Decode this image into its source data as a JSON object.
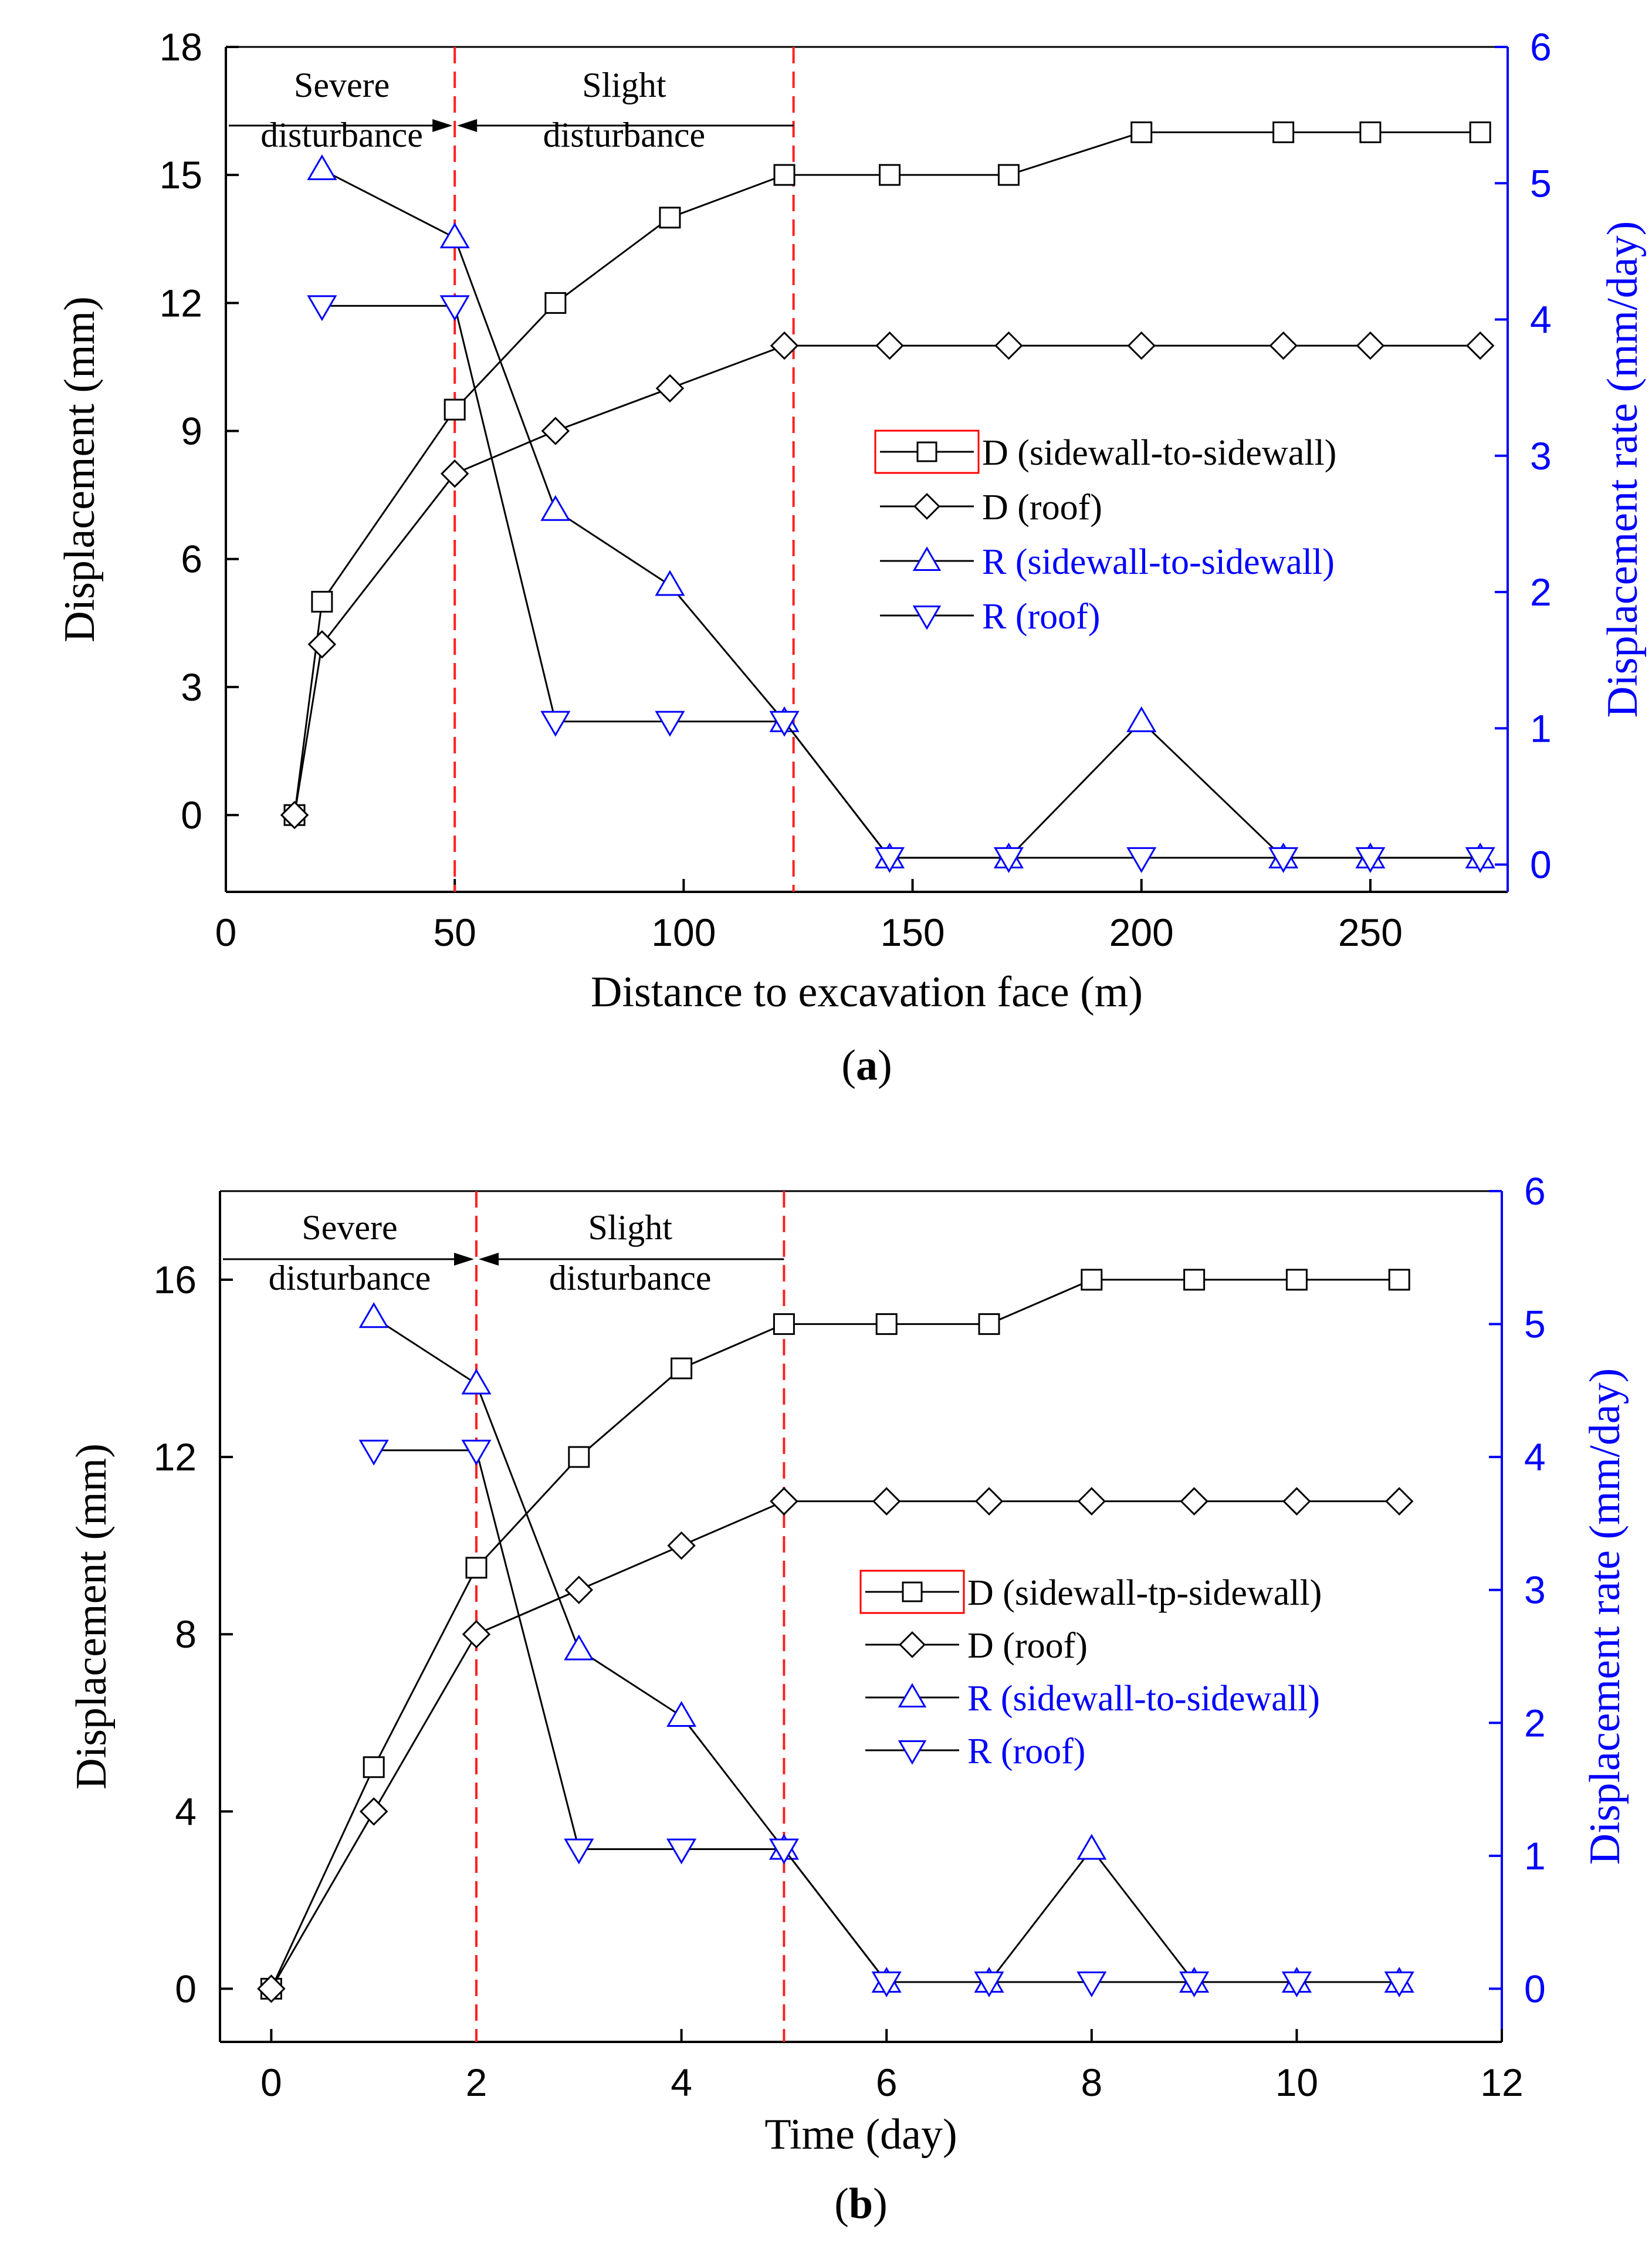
{
  "colors": {
    "axis_black": "#000000",
    "axis_blue": "#0000ff",
    "disp_series": "#000000",
    "rate_series": "#0000ff",
    "divider_red": "#ff2020",
    "legend_box_red": "#ff0000"
  },
  "chart_data": [
    {
      "panel_label": "a",
      "type": "line",
      "xlabel": "Distance to excavation face (m)",
      "ylabel": "Displacement (mm)",
      "y2label": "Displacement rate (mm/day)",
      "xlim": [
        0,
        280
      ],
      "ylim": [
        -1.8,
        18
      ],
      "y2lim": [
        -0.2,
        6
      ],
      "xticks": [
        0,
        50,
        100,
        150,
        200,
        250
      ],
      "yticks": [
        0,
        3,
        6,
        9,
        12,
        15,
        18
      ],
      "y2ticks": [
        0,
        1,
        2,
        3,
        4,
        5,
        6
      ],
      "grid": false,
      "legend_position": "center-right",
      "dividers": [
        50,
        124
      ],
      "zones": [
        {
          "line1": "Severe",
          "line2": "disturbance"
        },
        {
          "line1": "Slight",
          "line2": "disturbance"
        }
      ],
      "series": [
        {
          "name": "D (sidewall-to-sidewall)",
          "axis": "left",
          "marker": "square",
          "x": [
            15,
            21,
            50,
            72,
            97,
            122,
            145,
            171,
            200,
            231,
            250,
            274
          ],
          "y": [
            0,
            5,
            9.5,
            12,
            14,
            15,
            15,
            15,
            16,
            16,
            16,
            16
          ]
        },
        {
          "name": "D (roof)",
          "axis": "left",
          "marker": "diamond",
          "x": [
            15,
            21,
            50,
            72,
            97,
            122,
            145,
            171,
            200,
            231,
            250,
            274
          ],
          "y": [
            0,
            4,
            8,
            9,
            10,
            11,
            11,
            11,
            11,
            11,
            11,
            11
          ]
        },
        {
          "name": "R (sidewall-to-sidewall)",
          "axis": "right",
          "marker": "triangle-up",
          "x": [
            21,
            50,
            72,
            97,
            122,
            145,
            171,
            200,
            231,
            250,
            274
          ],
          "y": [
            5.1,
            4.6,
            2.6,
            2.05,
            1.05,
            0.05,
            0.05,
            1.05,
            0.05,
            0.05,
            0.05
          ]
        },
        {
          "name": "R (roof)",
          "axis": "right",
          "marker": "triangle-down",
          "x": [
            21,
            50,
            72,
            97,
            122,
            145,
            171,
            200,
            231,
            250,
            274
          ],
          "y": [
            4.1,
            4.1,
            1.05,
            1.05,
            1.05,
            0.05,
            0.05,
            0.05,
            0.05,
            0.05,
            0.05
          ]
        }
      ]
    },
    {
      "panel_label": "b",
      "type": "line",
      "xlabel": "Time (day)",
      "ylabel": "Displacement (mm)",
      "y2label": "Displacement rate (mm/day)",
      "xlim": [
        -0.5,
        12
      ],
      "ylim": [
        -1.2,
        18
      ],
      "y2lim": [
        -0.4,
        6
      ],
      "xticks": [
        0,
        2,
        4,
        6,
        8,
        10,
        12
      ],
      "yticks": [
        0,
        4,
        8,
        12,
        16
      ],
      "y2ticks": [
        0,
        1,
        2,
        3,
        4,
        5,
        6
      ],
      "grid": false,
      "legend_position": "center-right",
      "dividers": [
        2,
        5
      ],
      "zones": [
        {
          "line1": "Severe",
          "line2": "disturbance"
        },
        {
          "line1": "Slight",
          "line2": "disturbance"
        }
      ],
      "series": [
        {
          "name": "D (sidewall-tp-sidewall)",
          "axis": "left",
          "marker": "square",
          "x": [
            0,
            1,
            2,
            3,
            4,
            5,
            6,
            7,
            8,
            9,
            10,
            11
          ],
          "y": [
            0,
            5,
            9.5,
            12,
            14,
            15,
            15,
            15,
            16,
            16,
            16,
            16
          ]
        },
        {
          "name": "D (roof)",
          "axis": "left",
          "marker": "diamond",
          "x": [
            0,
            1,
            2,
            3,
            4,
            5,
            6,
            7,
            8,
            9,
            10,
            11
          ],
          "y": [
            0,
            4,
            8,
            9,
            10,
            11,
            11,
            11,
            11,
            11,
            11,
            11
          ]
        },
        {
          "name": "R (sidewall-to-sidewall)",
          "axis": "right",
          "marker": "triangle-up",
          "x": [
            1,
            2,
            3,
            4,
            5,
            6,
            7,
            8,
            9,
            10,
            11
          ],
          "y": [
            5.05,
            4.55,
            2.55,
            2.05,
            1.05,
            0.05,
            0.05,
            1.05,
            0.05,
            0.05,
            0.05
          ]
        },
        {
          "name": "R (roof)",
          "axis": "right",
          "marker": "triangle-down",
          "x": [
            1,
            2,
            3,
            4,
            5,
            6,
            7,
            8,
            9,
            10,
            11
          ],
          "y": [
            4.05,
            4.05,
            1.05,
            1.05,
            1.05,
            0.05,
            0.05,
            0.05,
            0.05,
            0.05,
            0.05
          ]
        }
      ]
    }
  ]
}
